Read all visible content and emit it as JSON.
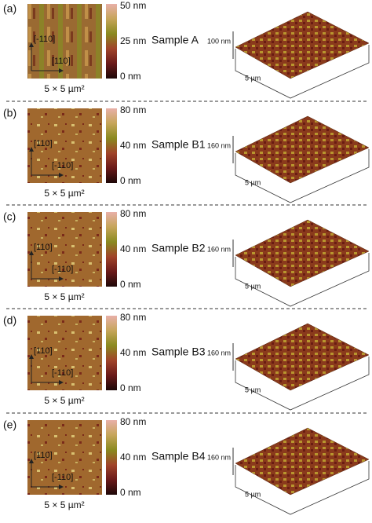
{
  "panels": [
    {
      "label": "(a)",
      "colorbar": [
        "50 nm",
        "25 nm",
        "0 nm"
      ],
      "directions": [
        "[-110]",
        "[110]"
      ],
      "scale": "5 × 5 µm²",
      "sample": "Sample A",
      "height": "100 nm",
      "lateral": "5 µm"
    },
    {
      "label": "(b)",
      "colorbar": [
        "80 nm",
        "40 nm",
        "0 nm"
      ],
      "directions": [
        "[110]",
        "[-110]"
      ],
      "scale": "5 × 5 µm²",
      "sample": "Sample B1",
      "height": "160 nm",
      "lateral": "5 µm"
    },
    {
      "label": "(c)",
      "colorbar": [
        "80 nm",
        "40 nm",
        "0 nm"
      ],
      "directions": [
        "[110]",
        "[-110]"
      ],
      "scale": "5 × 5 µm²",
      "sample": "Sample B2",
      "height": "160 nm",
      "lateral": "5 µm"
    },
    {
      "label": "(d)",
      "colorbar": [
        "80 nm",
        "40 nm",
        "0 nm"
      ],
      "directions": [
        "[110]",
        "[-110]"
      ],
      "scale": "5 × 5 µm²",
      "sample": "Sample B3",
      "height": "160 nm",
      "lateral": "5 µm"
    },
    {
      "label": "(e)",
      "colorbar": [
        "80 nm",
        "40 nm",
        "0 nm"
      ],
      "directions": [
        "[110]",
        "[-110]"
      ],
      "scale": "5 × 5 µm²",
      "sample": "Sample B4",
      "height": "160 nm",
      "lateral": "5 µm"
    }
  ]
}
